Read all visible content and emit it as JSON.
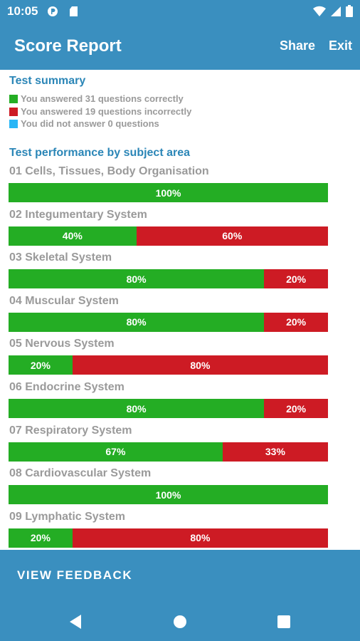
{
  "status_bar": {
    "time": "10:05"
  },
  "app_bar": {
    "title": "Score Report",
    "share_label": "Share",
    "exit_label": "Exit"
  },
  "summary": {
    "title": "Test summary",
    "items": [
      {
        "text": "You answered 31 questions correctly",
        "color": "#24ad24"
      },
      {
        "text": "You answered 19 questions incorrectly",
        "color": "#cd1b24"
      },
      {
        "text": "You did not answer 0 questions",
        "color": "#29b6f6"
      }
    ]
  },
  "performance": {
    "title": "Test performance by subject area",
    "subjects": [
      {
        "name": "01 Cells, Tissues, Body Organisation",
        "correct_pct": 100,
        "correct_label": "100%",
        "incorrect_label": ""
      },
      {
        "name": "02 Integumentary System",
        "correct_pct": 40,
        "correct_label": "40%",
        "incorrect_label": "60%"
      },
      {
        "name": "03 Skeletal System",
        "correct_pct": 80,
        "correct_label": "80%",
        "incorrect_label": "20%"
      },
      {
        "name": "04 Muscular System",
        "correct_pct": 80,
        "correct_label": "80%",
        "incorrect_label": "20%"
      },
      {
        "name": "05 Nervous System",
        "correct_pct": 20,
        "correct_label": "20%",
        "incorrect_label": "80%"
      },
      {
        "name": "06 Endocrine System",
        "correct_pct": 80,
        "correct_label": "80%",
        "incorrect_label": "20%"
      },
      {
        "name": "07 Respiratory System",
        "correct_pct": 67,
        "correct_label": "67%",
        "incorrect_label": "33%"
      },
      {
        "name": "08 Cardiovascular System",
        "correct_pct": 100,
        "correct_label": "100%",
        "incorrect_label": ""
      },
      {
        "name": "09 Lymphatic System",
        "correct_pct": 20,
        "correct_label": "20%",
        "incorrect_label": "80%"
      }
    ]
  },
  "footer": {
    "view_feedback_label": "VIEW FEEDBACK"
  },
  "colors": {
    "primary": "#3a8fbf",
    "correct": "#24ad24",
    "incorrect": "#cd1b24",
    "unanswered": "#29b6f6"
  }
}
